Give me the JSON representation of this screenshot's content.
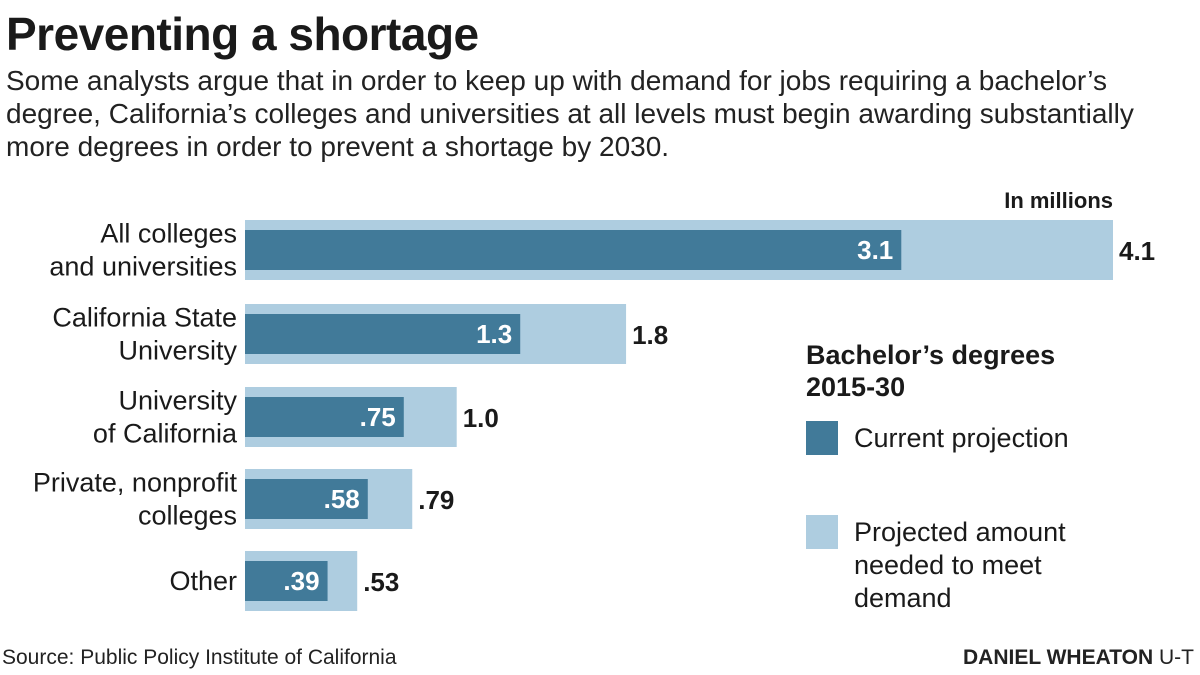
{
  "title": "Preventing a shortage",
  "subtitle": "Some analysts argue that in order to keep up with demand for jobs requiring a bachelor’s degree, California’s colleges and universities at all levels must begin awarding substantially more degrees in order to prevent a shortage by 2030.",
  "chart_data": {
    "type": "bar",
    "orientation": "horizontal",
    "unit_label": "In millions",
    "categories": [
      [
        "All colleges",
        "and universities"
      ],
      [
        "California State",
        "University"
      ],
      [
        "University",
        "of California"
      ],
      [
        "Private, nonprofit",
        "colleges"
      ],
      [
        "Other"
      ]
    ],
    "series": [
      {
        "name": "Projected amount needed to meet demand",
        "values": [
          4.1,
          1.8,
          1.0,
          0.79,
          0.53
        ],
        "labels": [
          "4.1",
          "1.8",
          "1.0",
          ".79",
          ".53"
        ],
        "color": "#aecde0"
      },
      {
        "name": "Current projection",
        "values": [
          3.1,
          1.3,
          0.75,
          0.58,
          0.39
        ],
        "labels": [
          "3.1",
          "1.3",
          ".75",
          ".58",
          ".39"
        ],
        "color": "#417a99"
      }
    ],
    "xlim": [
      0,
      4.1
    ],
    "legend": {
      "title": [
        "Bachelor’s degrees",
        "2015-30"
      ],
      "items": [
        {
          "label": [
            "Current projection"
          ],
          "color": "#417a99"
        },
        {
          "label": [
            "Projected amount",
            "needed to meet",
            "demand"
          ],
          "color": "#aecde0"
        }
      ],
      "position": "right"
    }
  },
  "footer": {
    "source": "Source: Public Policy Institute of California",
    "credit_name": "DANIEL WHEATON",
    "credit_org": "U-T"
  }
}
